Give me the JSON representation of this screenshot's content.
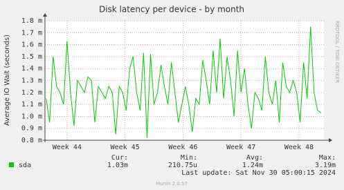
{
  "chart_data": {
    "type": "line",
    "title": "Disk latency per device - by month",
    "ylabel": "Average IO Wait (seconds)",
    "x": [
      43.64,
      43.7,
      43.76,
      43.82,
      43.88,
      43.94,
      44,
      44.06,
      44.12,
      44.18,
      44.24,
      44.3,
      44.36,
      44.42,
      44.48,
      44.54,
      44.6,
      44.66,
      44.72,
      44.78,
      44.84,
      44.9,
      44.96,
      45.02,
      45.08,
      45.14,
      45.2,
      45.26,
      45.32,
      45.38,
      45.44,
      45.5,
      45.56,
      45.62,
      45.68,
      45.74,
      45.8,
      45.86,
      45.92,
      45.98,
      46.04,
      46.1,
      46.16,
      46.22,
      46.28,
      46.34,
      46.4,
      46.46,
      46.52,
      46.58,
      46.64,
      46.7,
      46.76,
      46.82,
      46.88,
      46.94,
      47,
      47.06,
      47.12,
      47.18,
      47.24,
      47.3,
      47.36,
      47.42,
      47.48,
      47.54,
      47.6,
      47.66,
      47.72,
      47.78,
      47.84,
      47.9,
      47.96,
      48.02,
      48.08,
      48.14,
      48.2,
      48.26,
      48.32,
      48.38
    ],
    "xlim": [
      43.62,
      48.43
    ],
    "xticks": [
      {
        "value": 44,
        "label": "Week 44"
      },
      {
        "value": 45,
        "label": "Week 45"
      },
      {
        "value": 46,
        "label": "Week 46"
      },
      {
        "value": 47,
        "label": "Week 47"
      },
      {
        "value": 48,
        "label": "Week 48"
      }
    ],
    "ylim": [
      0.8,
      1.8
    ],
    "yticks": [
      {
        "value": 0.8,
        "label": "0.8 m"
      },
      {
        "value": 0.9,
        "label": "0.9 m"
      },
      {
        "value": 1.0,
        "label": "1.0 m"
      },
      {
        "value": 1.1,
        "label": "1.1 m"
      },
      {
        "value": 1.2,
        "label": "1.2 m"
      },
      {
        "value": 1.3,
        "label": "1.3 m"
      },
      {
        "value": 1.4,
        "label": "1.4 m"
      },
      {
        "value": 1.5,
        "label": "1.5 m"
      },
      {
        "value": 1.6,
        "label": "1.6 m"
      },
      {
        "value": 1.7,
        "label": "1.7 m"
      },
      {
        "value": 1.8,
        "label": "1.8 m"
      }
    ],
    "grid": true,
    "series": [
      {
        "name": "sda",
        "color": "#00cc00",
        "values": [
          1.15,
          0.95,
          1.5,
          1.25,
          1.2,
          1.1,
          1.63,
          1.2,
          0.92,
          1.3,
          1.25,
          1.2,
          1.33,
          1.3,
          0.95,
          1.25,
          1.2,
          1.15,
          1.25,
          1.2,
          0.85,
          1.25,
          1.2,
          1.05,
          1.4,
          1.5,
          1.2,
          1.05,
          1.53,
          0.82,
          1.52,
          1.1,
          1.2,
          1.43,
          1.25,
          1.1,
          1.45,
          1.2,
          0.95,
          1.1,
          1.25,
          1.1,
          0.87,
          1.15,
          1.1,
          1.47,
          1.3,
          1.1,
          1.55,
          1.2,
          1.65,
          1.15,
          1.5,
          1.3,
          1.0,
          1.55,
          1.2,
          1.4,
          1.1,
          0.9,
          1.2,
          1.15,
          1.05,
          1.5,
          1.2,
          1.1,
          1.3,
          0.95,
          1.45,
          1.25,
          1.2,
          1.3,
          1.2,
          0.95,
          1.45,
          1.15,
          1.75,
          1.2,
          1.05,
          1.03
        ]
      }
    ],
    "stats": {
      "headers": [
        "Cur:",
        "Min:",
        "Avg:",
        "Max:"
      ],
      "values": [
        "1.03m",
        "210.75u",
        "1.24m",
        "3.19m"
      ]
    },
    "last_update": "Last update: Sat Nov 30 05:00:15 2024",
    "footer": "Munin 2.0.57",
    "watermark": "RRDTOOL / TOBI OETIKER"
  }
}
